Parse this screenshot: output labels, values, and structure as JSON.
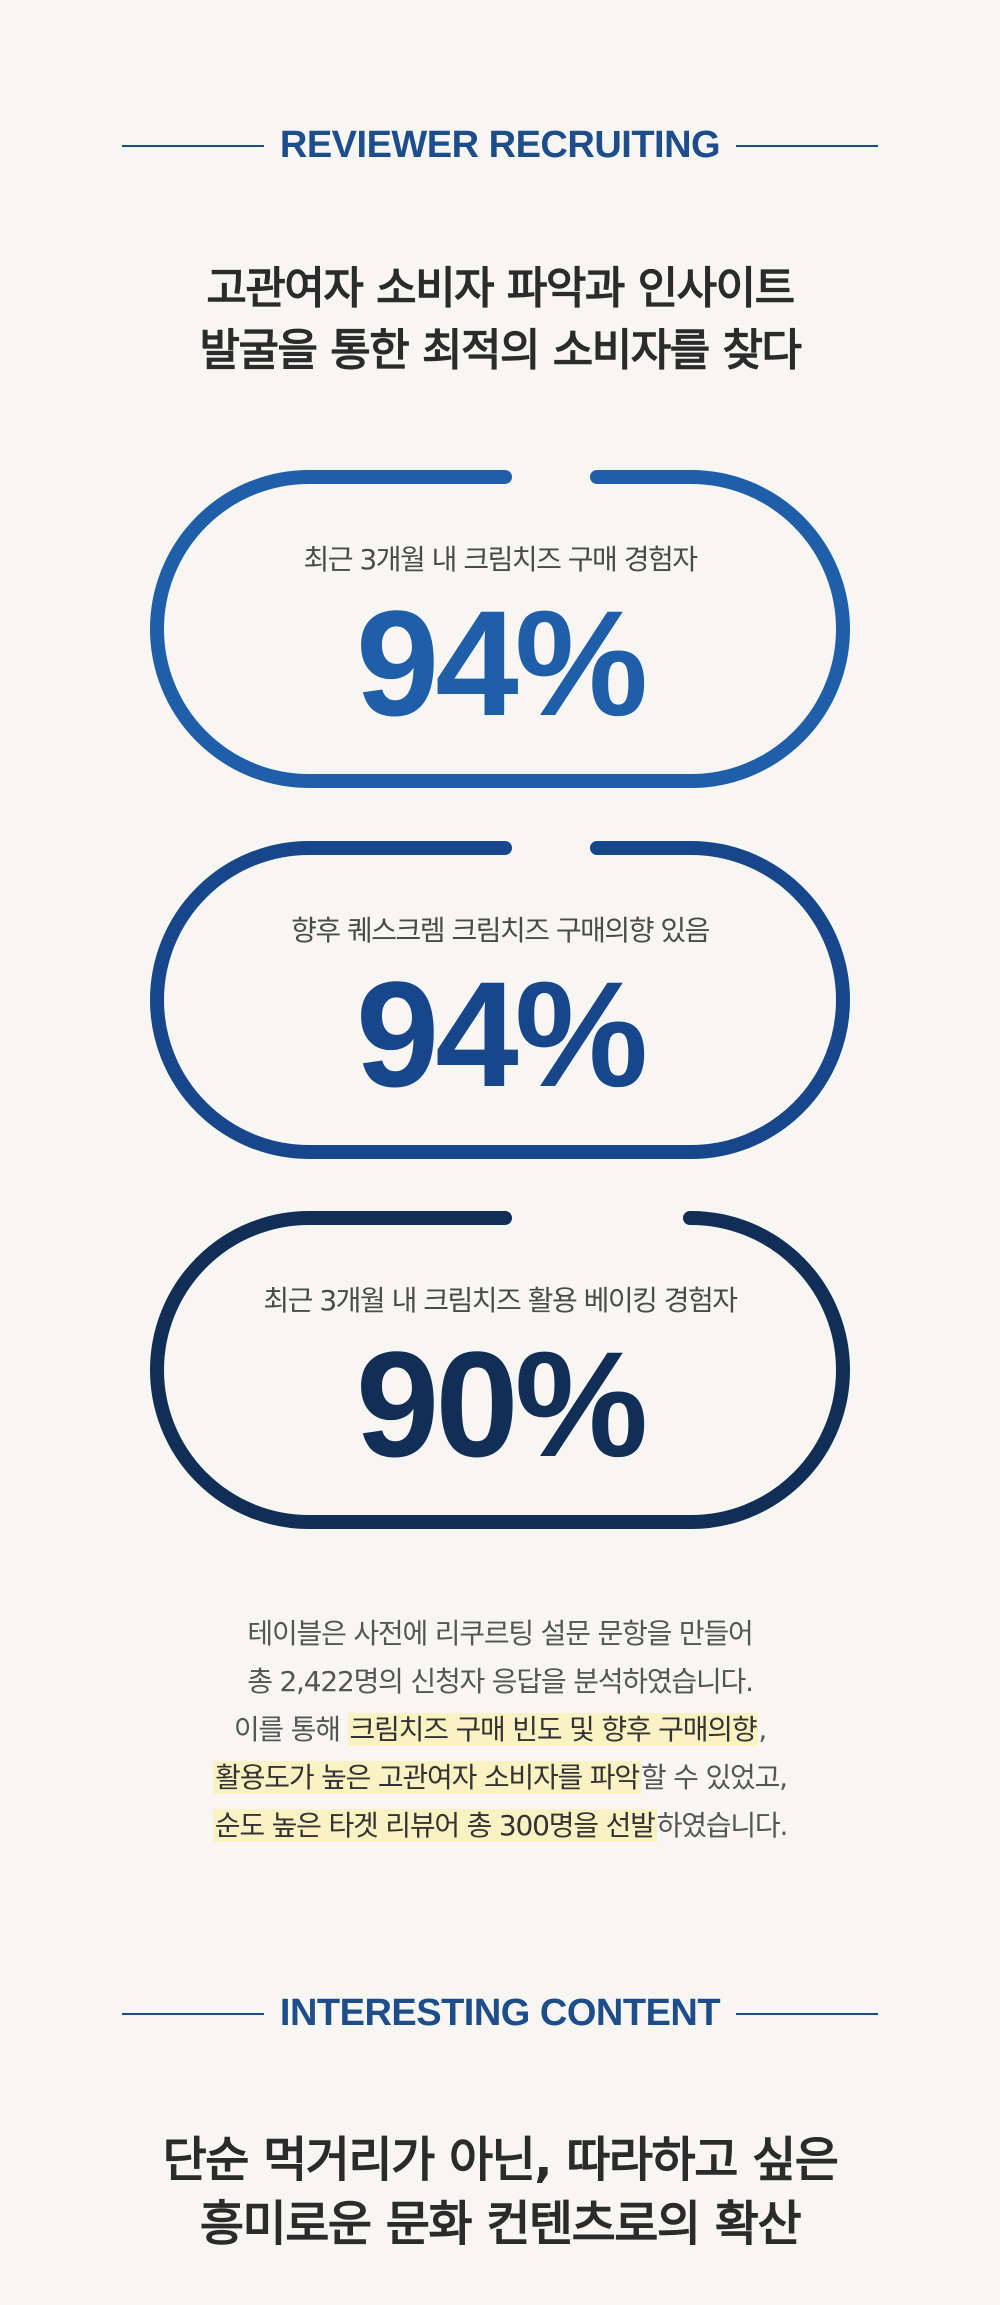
{
  "sections": {
    "recruiting": {
      "title": "REVIEWER RECRUITING",
      "heading_line1": "고관여자 소비자 파악과 인사이트",
      "heading_line2": "발굴을 통한 최적의 소비자를 찾다"
    },
    "content": {
      "title": "INTERESTING CONTENT",
      "heading_line1": "단순 먹거리가 아닌, 따라하고 싶은",
      "heading_line2": "흥미로운 문화 컨텐츠로의 확산"
    }
  },
  "stats": [
    {
      "label": "최근 3개월 내 크림치즈 구매 경험자",
      "value": "94%",
      "color": "#1f5ea8"
    },
    {
      "label": "향후 퀘스크렘 크림치즈 구매의향 있음",
      "value": "94%",
      "color": "#17478a"
    },
    {
      "label": "최근 3개월 내 크림치즈 활용 베이킹 경험자",
      "value": "90%",
      "color": "#112e57"
    }
  ],
  "description": {
    "line1": "테이블은 사전에 리쿠르팅 설문 문항을 만들어",
    "line2": "총 2,422명의 신청자 응답을 분석하였습니다.",
    "line3_a": "이를 통해 ",
    "line3_hl": "크림치즈 구매 빈도 및 향후 구매의향",
    "line3_b": ",",
    "line4_hl": "활용도가 높은 고관여자 소비자를 파악",
    "line4_b": "할 수 있었고,",
    "line5_hl": "순도 높은 타겟 리뷰어 총 300명을 선발",
    "line5_b": "하였습니다."
  },
  "colors": {
    "background": "#f7f6f2",
    "accent": "#1e4d8c",
    "highlight": "#fbf2c4"
  }
}
